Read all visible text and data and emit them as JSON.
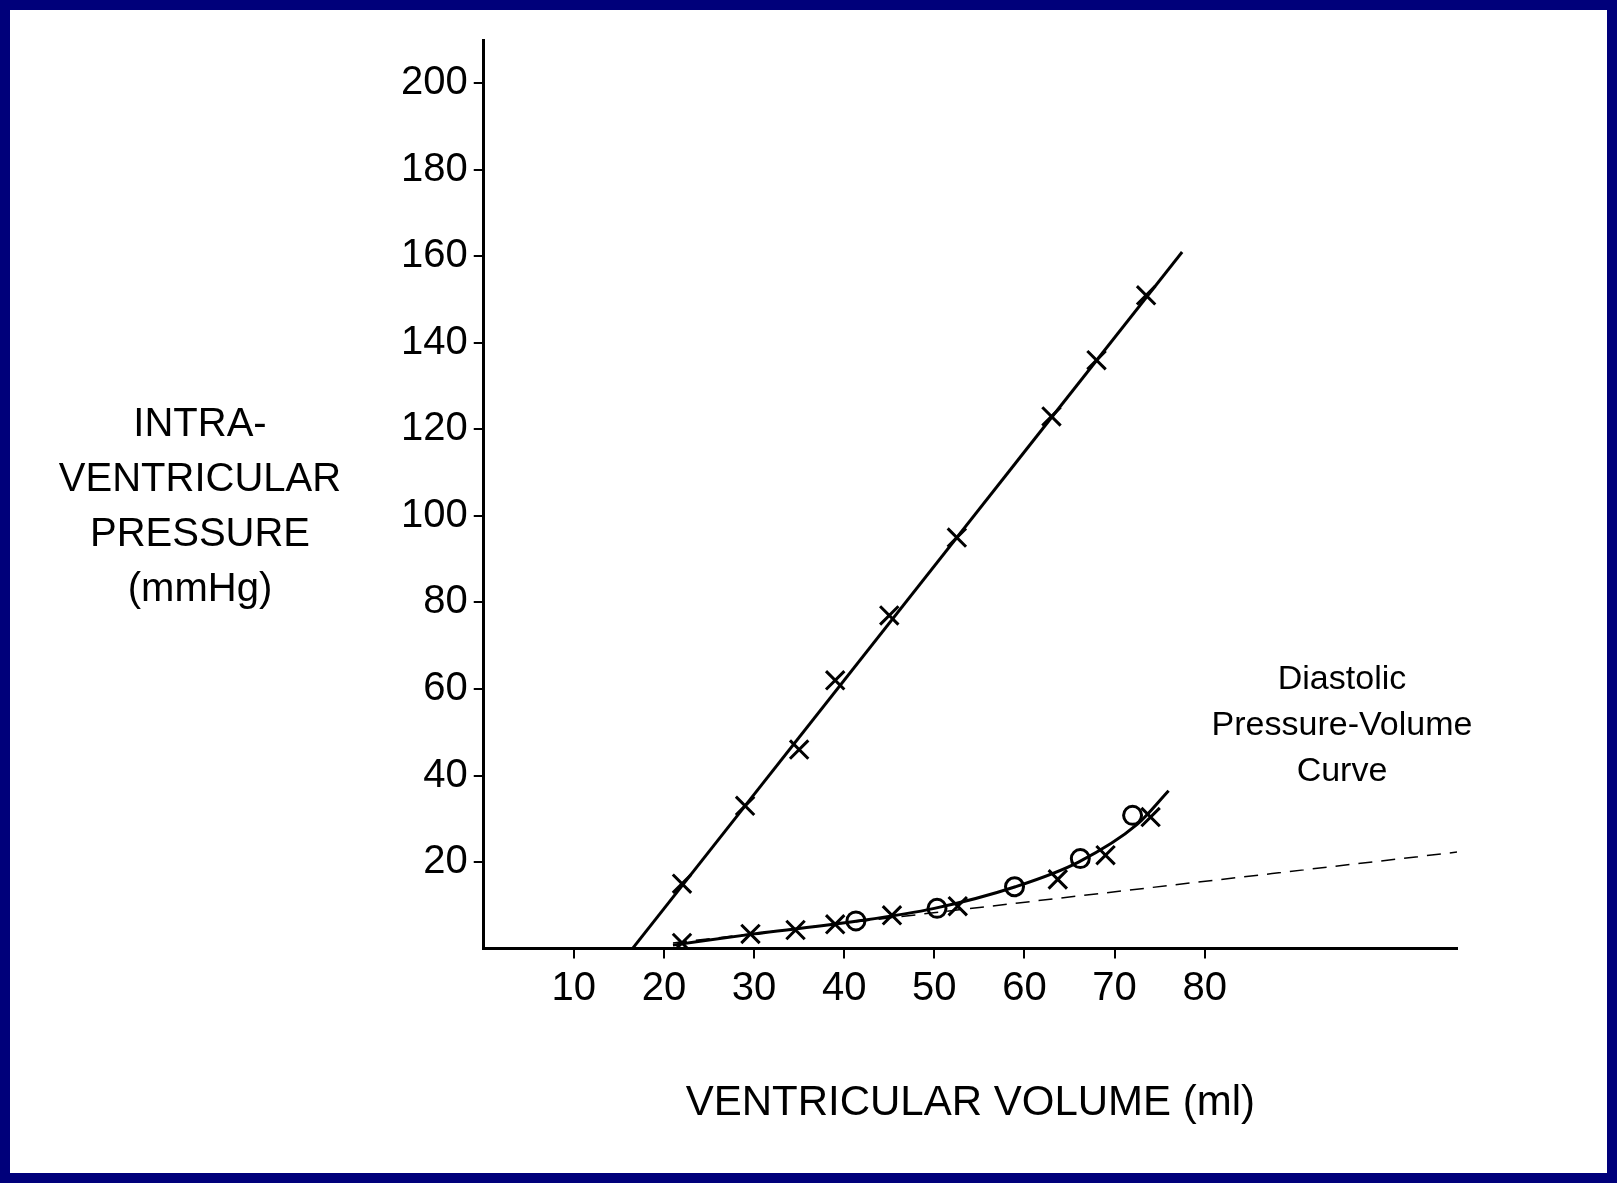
{
  "chart_data": {
    "type": "scatter",
    "xlabel": "VENTRICULAR VOLUME (ml)",
    "ylabel": "INTRA-\nVENTRICULAR\nPRESSURE\n(mmHg)",
    "xlim": [
      0,
      108
    ],
    "xticks": [
      10,
      20,
      30,
      40,
      50,
      60,
      70,
      80
    ],
    "ylim": [
      0,
      210
    ],
    "yticks": [
      20,
      40,
      60,
      80,
      100,
      120,
      140,
      160,
      180,
      200
    ],
    "grid": false,
    "legend": false,
    "annotations": [
      "Diastolic\nPressure-Volume\nCurve"
    ],
    "series": [
      {
        "marker": "cross",
        "color": "#000000",
        "x": [
          22,
          29,
          35,
          39,
          45,
          52.5,
          63,
          68,
          73.5
        ],
        "values": [
          15,
          33,
          46,
          62,
          77,
          95,
          123,
          136,
          151
        ]
      },
      {
        "type": "line",
        "marker": "none",
        "line_style": "solid",
        "color": "#000000",
        "x": [
          16.5,
          77.5
        ],
        "values": [
          0,
          161
        ]
      },
      {
        "marker": "cross",
        "color": "#000000",
        "x": [
          22,
          29.6,
          34.6,
          39,
          45.3,
          52.6,
          63.7,
          69,
          74
        ],
        "values": [
          1.3,
          3.4,
          4.3,
          5.6,
          7.7,
          9.8,
          16,
          21.6,
          30.4
        ]
      },
      {
        "marker": "circle",
        "color": "#000000",
        "x": [
          41.3,
          50.3,
          58.9,
          66.2,
          72
        ],
        "values": [
          6.4,
          9.3,
          14.3,
          20.8,
          30.8
        ]
      },
      {
        "type": "line",
        "marker": "none",
        "line_style": "solid",
        "color": "#000000",
        "x": [
          21,
          30,
          41.3,
          50,
          59,
          66,
          72.5,
          76
        ],
        "values": [
          0.8,
          3.4,
          6.3,
          9.3,
          14.3,
          20,
          28.7,
          36.5
        ]
      },
      {
        "type": "line",
        "marker": "none",
        "line_style": "dashed",
        "color": "#000000",
        "x": [
          21,
          108
        ],
        "values": [
          1.3,
          22.3
        ]
      }
    ]
  }
}
